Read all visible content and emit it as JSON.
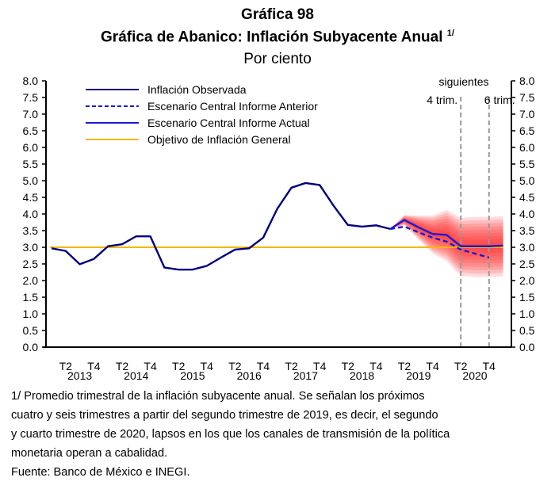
{
  "chart_data": {
    "type": "line",
    "title": "Gráfica 98",
    "subtitle": "Gráfica de Abanico: Inflación Subyacente Anual",
    "subtitle_note": "1/",
    "units": "Por ciento",
    "ylim": [
      0,
      8
    ],
    "y_ticks": [
      "0.0",
      "0.5",
      "1.0",
      "1.5",
      "2.0",
      "2.5",
      "3.0",
      "3.5",
      "4.0",
      "4.5",
      "5.0",
      "5.5",
      "6.0",
      "6.5",
      "7.0",
      "7.5",
      "8.0"
    ],
    "x_quarters": [
      "2013T1",
      "2013T2",
      "2013T3",
      "2013T4",
      "2014T1",
      "2014T2",
      "2014T3",
      "2014T4",
      "2015T1",
      "2015T2",
      "2015T3",
      "2015T4",
      "2016T1",
      "2016T2",
      "2016T3",
      "2016T4",
      "2017T1",
      "2017T2",
      "2017T3",
      "2017T4",
      "2018T1",
      "2018T2",
      "2018T3",
      "2018T4",
      "2019T1",
      "2019T2",
      "2019T3",
      "2019T4",
      "2020T1",
      "2020T2",
      "2020T3",
      "2020T4",
      "2021T1"
    ],
    "x_tick_labels": [
      {
        "q": "T2",
        "year": "2013"
      },
      {
        "q": "T4",
        "year": ""
      },
      {
        "q": "T2",
        "year": "2014"
      },
      {
        "q": "T4",
        "year": ""
      },
      {
        "q": "T2",
        "year": "2015"
      },
      {
        "q": "T4",
        "year": ""
      },
      {
        "q": "T2",
        "year": "2016"
      },
      {
        "q": "T4",
        "year": ""
      },
      {
        "q": "T2",
        "year": "2017"
      },
      {
        "q": "T4",
        "year": ""
      },
      {
        "q": "T2",
        "year": "2018"
      },
      {
        "q": "T4",
        "year": ""
      },
      {
        "q": "T2",
        "year": "2019"
      },
      {
        "q": "T4",
        "year": ""
      },
      {
        "q": "T2",
        "year": "2020"
      },
      {
        "q": "T4",
        "year": ""
      }
    ],
    "series": [
      {
        "name": "Inflación Observada",
        "style": "solid",
        "color": "#00007f",
        "start_index": 0,
        "values": [
          2.97,
          2.89,
          2.49,
          2.65,
          3.03,
          3.09,
          3.33,
          3.33,
          2.39,
          2.33,
          2.33,
          2.44,
          2.69,
          2.93,
          2.97,
          3.29,
          4.16,
          4.79,
          4.93,
          4.87,
          4.24,
          3.67,
          3.62,
          3.66,
          3.55
        ]
      },
      {
        "name": "Escenario Central Informe Anterior",
        "style": "dashed",
        "color": "#1a1ad6",
        "start_index": 24,
        "values": [
          3.55,
          3.62,
          3.45,
          3.29,
          3.17,
          2.93,
          2.81,
          2.69
        ]
      },
      {
        "name": "Escenario Central Informe Actual",
        "style": "solid",
        "color": "#1a1ad6",
        "start_index": 24,
        "values": [
          3.55,
          3.82,
          3.6,
          3.4,
          3.37,
          3.03,
          3.03,
          3.03,
          3.05
        ]
      },
      {
        "name": "Objetivo de Inflación General",
        "style": "solid",
        "color": "#f5b800",
        "constant": 3.0
      }
    ],
    "fan": {
      "start_index": 24,
      "halfwidth": [
        0.0,
        0.15,
        0.35,
        0.55,
        0.75,
        0.85,
        0.88,
        0.88,
        0.88
      ],
      "color": "#ff2020"
    },
    "vertical_markers": [
      {
        "index": 29,
        "label": "4 trim."
      },
      {
        "index": 31,
        "label": "6 trim."
      }
    ],
    "marker_header": "siguientes",
    "legend_position": "top-left"
  },
  "footnote": {
    "lines": [
      "1/ Promedio trimestral de la inflación subyacente anual. Se señalan los próximos",
      "cuatro y seis trimestres a partir del segundo trimestre de 2019, es decir, el segundo",
      "y cuarto trimestre de 2020, lapsos en los que los canales de transmisión de la política",
      "monetaria operan a cabalidad."
    ],
    "source": "Fuente: Banco de México e INEGI."
  }
}
